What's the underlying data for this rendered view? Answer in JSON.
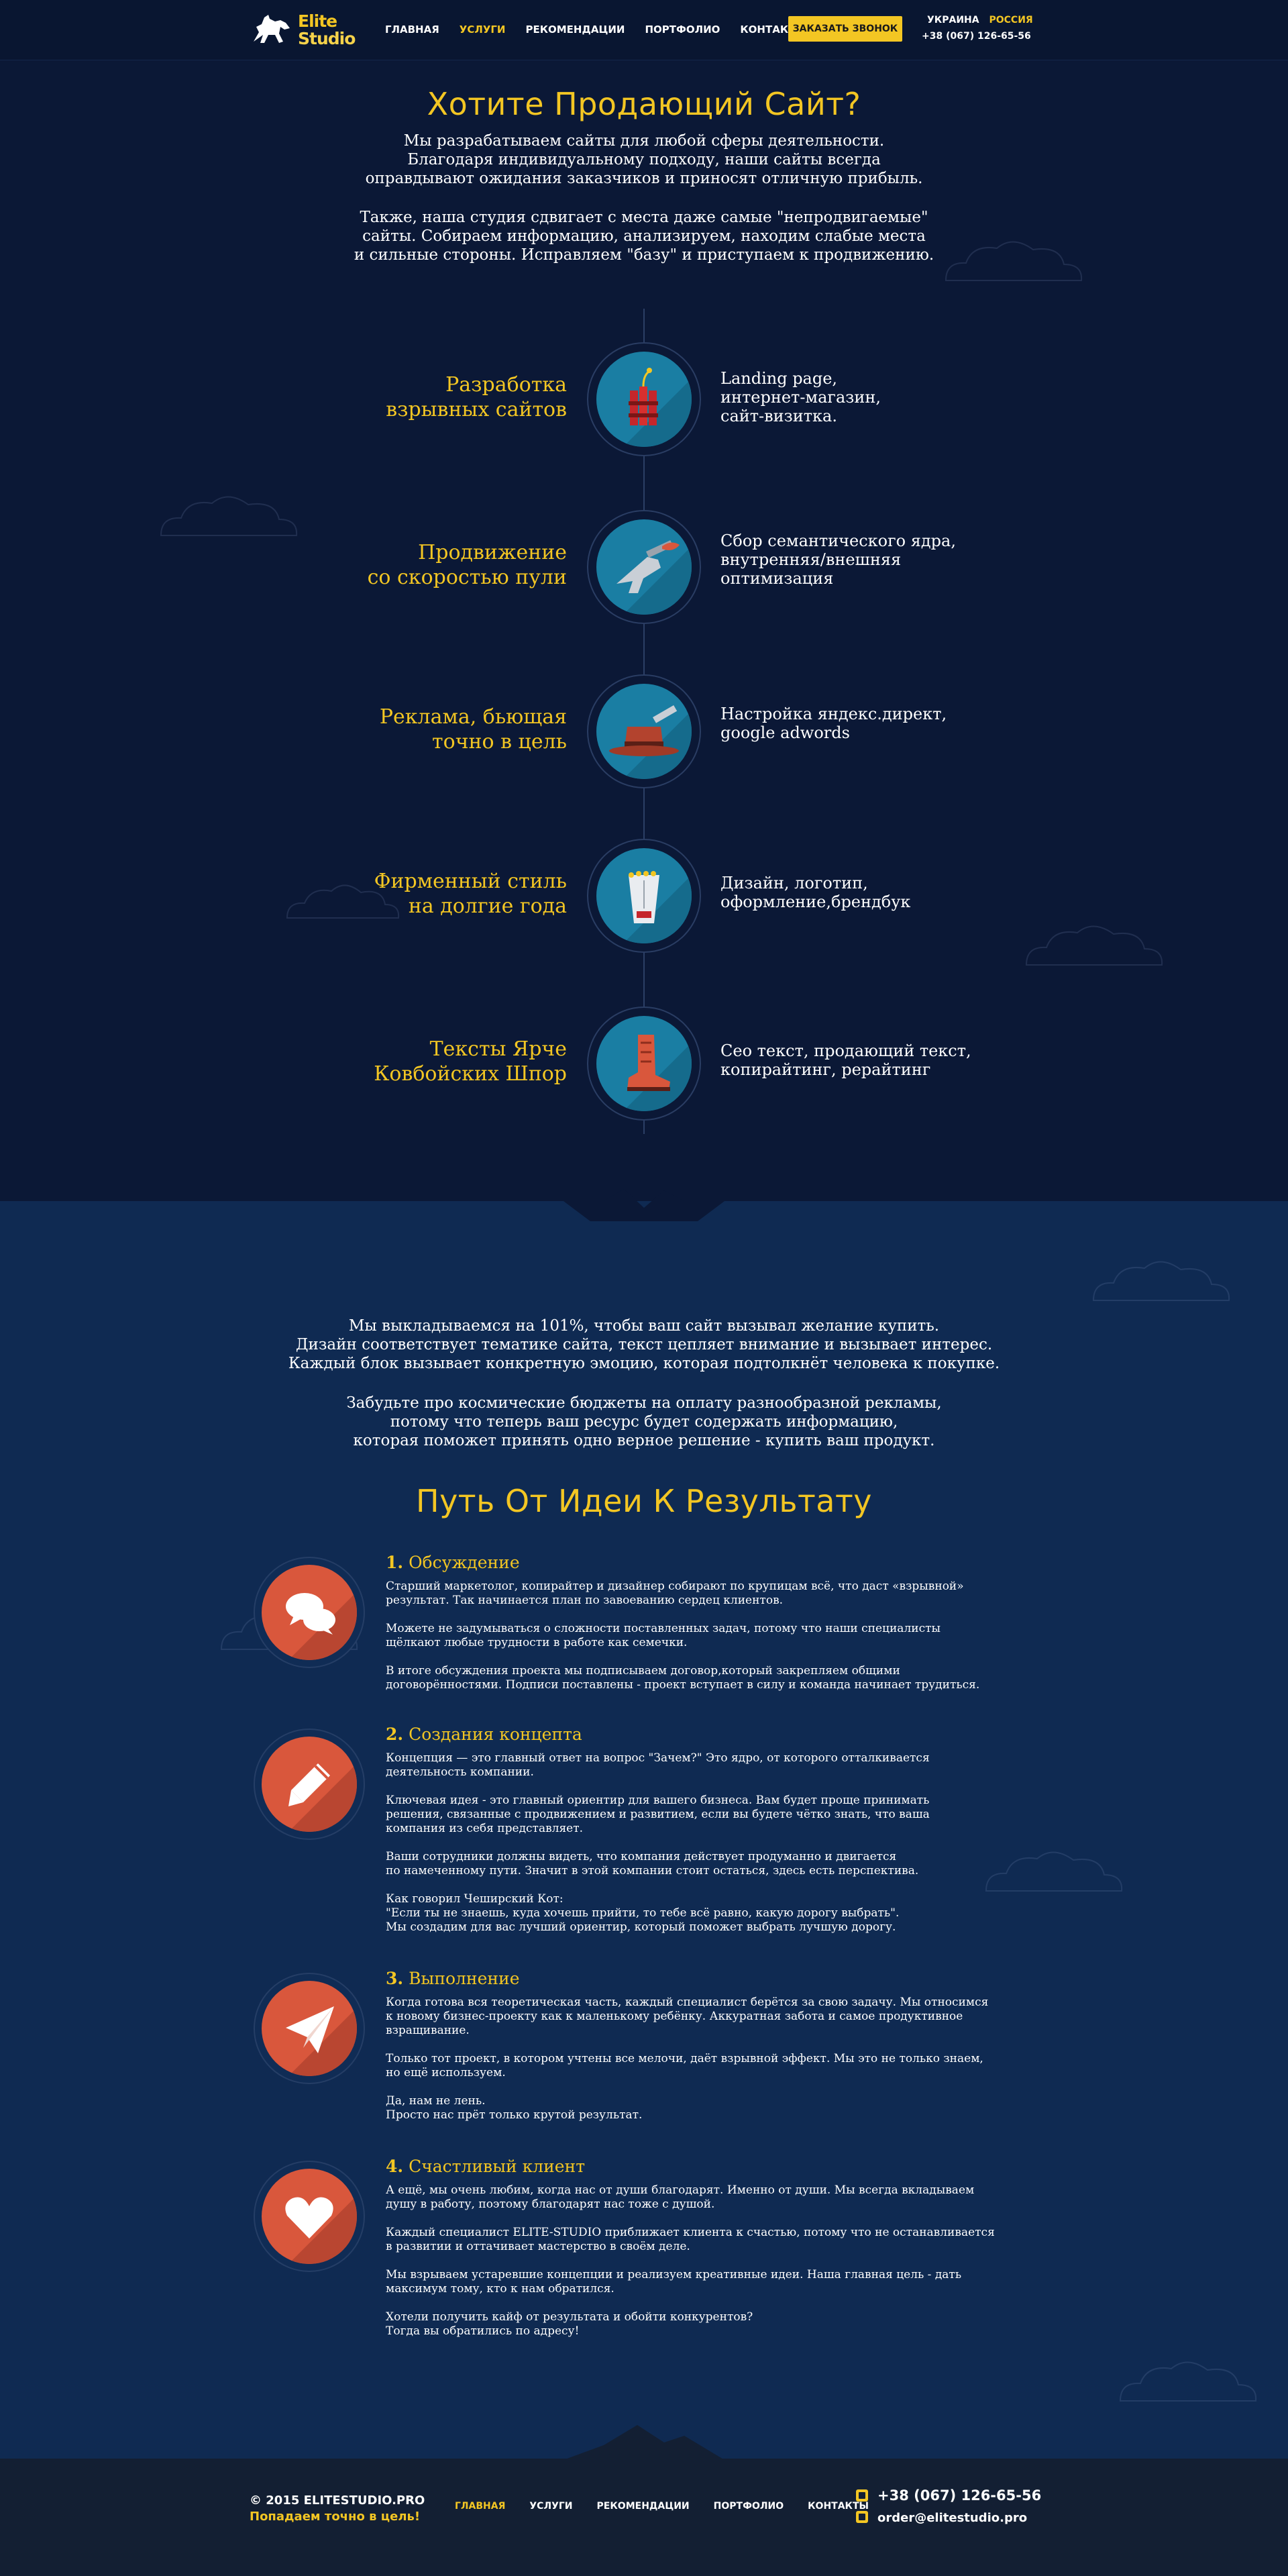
{
  "brand": {
    "line1": "Elite",
    "line2": "Studio"
  },
  "header": {
    "nav": [
      "ГЛАВНАЯ",
      "УСЛУГИ",
      "РЕКОМЕНДАЦИИ",
      "ПОРТФОЛИО",
      "КОНТАКТЫ"
    ],
    "active_nav": "УСЛУГИ",
    "call_button": "ЗАКАЗАТЬ ЗВОНОК",
    "regions": [
      "УКРАИНА",
      "РОССИЯ"
    ],
    "selected_region": "РОССИЯ",
    "phone": "+38 (067) 126-65-56"
  },
  "hero": {
    "title": "Хотите Продающий Сайт?",
    "para1": "Мы разрабатываем сайты для любой сферы деятельности.\nБлагодаря индивидуальному подходу, наши сайты всегда\nоправдывают ожидания заказчиков и приносят отличную прибыль.",
    "para2": "Также, наша студия сдвигает с места даже самые \"непродвигаемые\"\nсайты. Собираем информацию, анализируем, находим слабые места\nи сильные стороны. Исправляем \"базу\" и приступаем к продвижению."
  },
  "services": [
    {
      "title": "Разработка\nвзрывных сайтов",
      "desc": "Landing page,\nинтернет-магазин,\nсайт-визитка.",
      "icon": "dynamite-icon"
    },
    {
      "title": "Продвижение\nсо скоростью пули",
      "desc": "Сбор семантического ядра,\nвнутренняя/внешняя\nоптимизация",
      "icon": "revolver-icon"
    },
    {
      "title": "Реклама, бьющая\nточно в цель",
      "desc": "Настройка яндекс.директ,\ngoogle adwords",
      "icon": "cowboy-hat-icon"
    },
    {
      "title": "Фирменный стиль\nна долгие года",
      "desc": "Дизайн, логотип,\nоформление,брендбук",
      "icon": "shirt-icon"
    },
    {
      "title": "Тексты Ярче\nКовбойских Шпор",
      "desc": "Сео текст, продающий текст,\nкопирайтинг, рерайтинг",
      "icon": "boot-icon"
    }
  ],
  "intro2": {
    "para1": "Мы выкладываемся на 101%, чтобы ваш сайт вызывал желание купить.\nДизайн соответствует тематике сайта, текст цепляет внимание и вызывает интерес.\nКаждый блок вызывает конкретную эмоцию, которая подтолкнёт человека к покупке.",
    "para2": "Забудьте про космические бюджеты на оплату разнообразной рекламы,\nпотому что теперь ваш ресурс будет содержать информацию,\nкоторая поможет принять одно верное решение - купить ваш продукт."
  },
  "process": {
    "title": "Путь От Идеи К Результату",
    "steps": [
      {
        "num": "1.",
        "title": "Обсуждение",
        "icon": "chat-bubbles-icon",
        "body": "Старший маркетолог, копирайтер и дизайнер собирают по крупицам всё, что даст «взрывной»\nрезультат. Так начинается план по завоеванию  сердец клиентов.\n\nМожете не задумываться о сложности поставленных задач, потому что наши специалисты\nщёлкают любые трудности в работе как семечки.\n\nВ итоге обсуждения проекта мы подписываем договор,который закрепляем общими\nдоговорённостями. Подписи поставлены - проект вступает в силу и команда начинает трудиться."
      },
      {
        "num": "2.",
        "title": "Создания концепта",
        "icon": "pencil-icon",
        "body": "Концепция — это главный ответ на вопрос \"Зачем?\" Это ядро, от которого отталкивается\nдеятельность компании.\n\nКлючевая идея - это главный ориентир для вашего бизнеса. Вам будет проще принимать\nрешения, связанные с продвижением и развитием, если вы будете чётко знать, что ваша\nкомпания из себя представляет.\n\nВаши сотрудники должны видеть, что компания действует продуманно и двигается\nпо намеченному пути. Значит в этой компании стоит остаться, здесь есть перспектива.\n\nКак говорил Чеширский Кот:\n\"Если ты не знаешь, куда хочешь прийти, то тебе всё равно, какую дорогу выбрать\".\nМы создадим для вас лучший ориентир, который поможет выбрать лучшую дорогу."
      },
      {
        "num": "3.",
        "title": "Выполнение",
        "icon": "paper-plane-icon",
        "body": "Когда готова вся теоретическая часть, каждый специалист берётся за свою задачу. Мы относимся\nк новому бизнес-проекту как к маленькому ребёнку. Аккуратная забота и самое продуктивное\nвзращивание.\n\n Только тот проект, в котором учтены все мелочи, даёт взрывной эффект. Мы это не только знаем,\nно ещё используем.\n\n Да, нам не лень.\nПросто нас прёт только крутой результат."
      },
      {
        "num": "4.",
        "title": "Счастливый клиент",
        "icon": "heart-icon",
        "body": "А ещё, мы очень любим, когда нас от души благодарят. Именно от души. Мы всегда вкладываем\nдушу в работу, поэтому благодарят нас тоже с душой.\n\nКаждый специалист ELITE-STUDIO приближает клиента к счастью, потому что не останавливается\nв развитии и оттачивает мастерство в своём деле.\n\nМы взрываем устаревшие концепции и реализуем креативные идеи. Наша главная цель - дать\nмаксимум тому, кто к нам обратился.\n\nХотели получить кайф от результата и обойти конкурентов?\nТогда вы обратились по адресу!"
      }
    ]
  },
  "footer": {
    "copyright": "© 2015 ELITESTUDIO.PRO",
    "tagline": "Попадаем точно в цель!",
    "nav": [
      "ГЛАВНАЯ",
      "УСЛУГИ",
      "РЕКОМЕНДАЦИИ",
      "ПОРТФОЛИО",
      "КОНТАКТЫ"
    ],
    "active_nav": "ГЛАВНАЯ",
    "phone": "+38 (067) 126-65-56",
    "email": "order@elitestudio.pro"
  },
  "colors": {
    "accent": "#f3c623",
    "bg_dark": "#0b1836",
    "bg_mid": "#0f2a52",
    "service_circle": "#1a7ea3",
    "step_circle": "#d9573c"
  }
}
